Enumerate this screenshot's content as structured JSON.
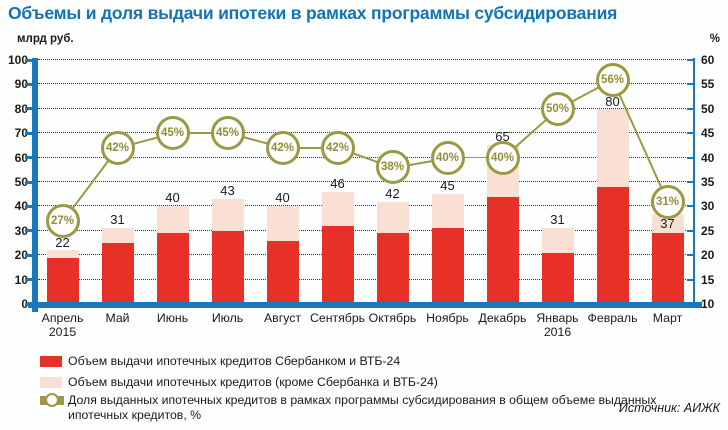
{
  "title": "Объемы и доля выдачи ипотеки в рамках программы субсидирования",
  "left_axis_unit": "млрд руб.",
  "right_axis_unit": "%",
  "source": "Источник: АИЖК",
  "legend": {
    "item1": "Объем выдачи ипотечных кредитов Сбербанком и ВТБ-24",
    "item2": "Объем выдачи ипотечных кредитов (кроме Сбербанка и ВТБ-24)",
    "item3": "Доля выданных ипотечных кредитов в рамках программы субсидирования в общем объеме выданных ипотечных кредитов, %"
  },
  "colors": {
    "title_blue": "#1273b5",
    "axis_blue": "#1878be",
    "bar_red": "#e63028",
    "bar_pink": "#fadfd5",
    "line_olive": "#9a9a44"
  },
  "chart_data": {
    "type": "bar",
    "stacked": true,
    "grid": "dotted-horizontal",
    "legend_position": "bottom",
    "categories": [
      {
        "label": "Апрель",
        "sublabel": "2015"
      },
      {
        "label": "Май",
        "sublabel": ""
      },
      {
        "label": "Июнь",
        "sublabel": ""
      },
      {
        "label": "Июль",
        "sublabel": ""
      },
      {
        "label": "Август",
        "sublabel": ""
      },
      {
        "label": "Сентябрь",
        "sublabel": ""
      },
      {
        "label": "Октябрь",
        "sublabel": ""
      },
      {
        "label": "Ноябрь",
        "sublabel": ""
      },
      {
        "label": "Декабрь",
        "sublabel": ""
      },
      {
        "label": "Январь",
        "sublabel": "2016"
      },
      {
        "label": "Февраль",
        "sublabel": ""
      },
      {
        "label": "Март",
        "sublabel": ""
      }
    ],
    "series": [
      {
        "name": "Объем выдачи ипотечных кредитов Сбербанком и ВТБ-24",
        "color": "#e63028",
        "values": [
          19,
          25,
          29,
          30,
          26,
          32,
          29,
          31,
          44,
          21,
          48,
          29
        ]
      },
      {
        "name": "Объем выдачи ипотечных кредитов (кроме Сбербанка и ВТБ-24)",
        "color": "#fadfd5",
        "values": [
          3,
          6,
          11,
          13,
          14,
          14,
          13,
          14,
          21,
          10,
          32,
          8
        ]
      }
    ],
    "totals": [
      22,
      31,
      40,
      43,
      40,
      46,
      42,
      45,
      65,
      31,
      80,
      37
    ],
    "line_series": {
      "name": "Доля выданных ипотечных кредитов в рамках программы субсидирования в общем объеме выданных ипотечных кредитов, %",
      "color": "#9a9a44",
      "axis": "right",
      "values": [
        27,
        42,
        45,
        45,
        42,
        42,
        38,
        40,
        40,
        50,
        56,
        31
      ]
    },
    "left_axis": {
      "label": "млрд руб.",
      "min": 0,
      "max": 100,
      "step": 10
    },
    "right_axis": {
      "label": "%",
      "min": 10,
      "max": 60,
      "step": 5
    }
  }
}
